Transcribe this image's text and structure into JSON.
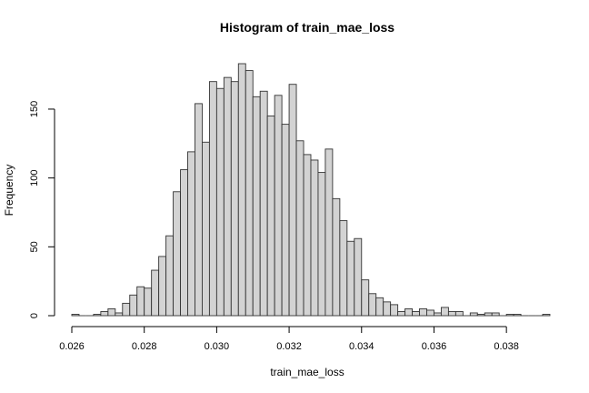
{
  "chart_data": {
    "type": "bar",
    "subtype": "histogram",
    "title": "Histogram of train_mae_loss",
    "xlabel": "train_mae_loss",
    "ylabel": "Frequency",
    "bin_start": 0.026,
    "bin_width": 0.0002,
    "counts": [
      1,
      0,
      0,
      1,
      3,
      5,
      2,
      9,
      15,
      21,
      20,
      33,
      43,
      58,
      90,
      106,
      119,
      154,
      126,
      170,
      165,
      173,
      170,
      183,
      178,
      159,
      163,
      145,
      160,
      139,
      168,
      127,
      117,
      113,
      104,
      121,
      85,
      69,
      54,
      56,
      26,
      16,
      13,
      10,
      8,
      3,
      5,
      3,
      5,
      4,
      2,
      6,
      3,
      3,
      0,
      2,
      1,
      2,
      2,
      0,
      1,
      1,
      0,
      0,
      0,
      1
    ],
    "xlim": [
      0.026,
      0.039
    ],
    "ylim": [
      0,
      183
    ],
    "xticks": [
      0.026,
      0.028,
      0.03,
      0.032,
      0.034,
      0.036,
      0.038
    ],
    "xtick_labels": [
      "0.026",
      "0.028",
      "0.030",
      "0.032",
      "0.034",
      "0.036",
      "0.038"
    ],
    "yticks": [
      0,
      50,
      100,
      150
    ],
    "ytick_labels": [
      "0",
      "50",
      "100",
      "150"
    ],
    "bar_fill": "#d3d3d3",
    "bar_stroke": "#333333"
  }
}
